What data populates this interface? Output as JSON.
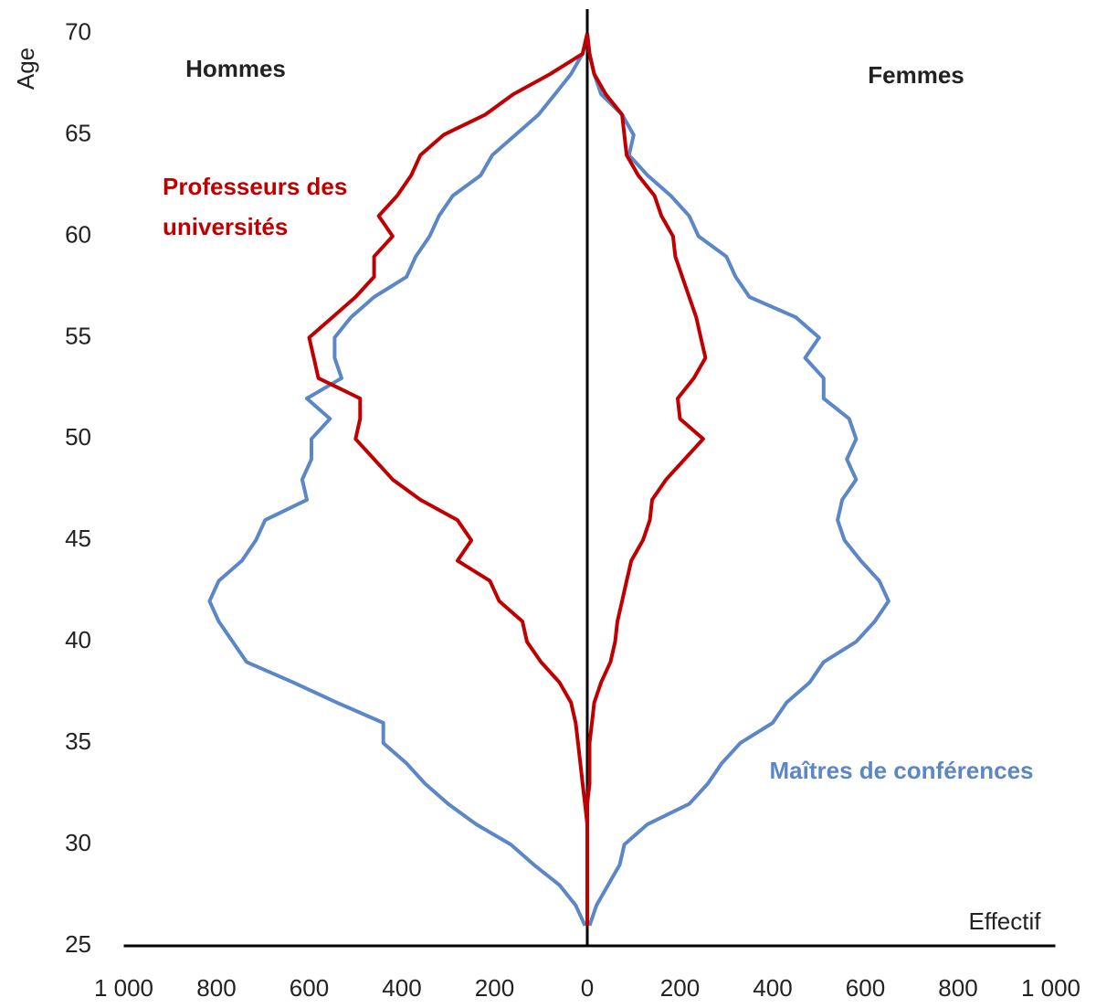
{
  "chart_data": {
    "type": "pyramid",
    "y_label": "Age",
    "x_label": "Effectif",
    "sides": [
      "Hommes",
      "Femmes"
    ],
    "ages": [
      26,
      27,
      28,
      29,
      30,
      31,
      32,
      33,
      34,
      35,
      36,
      37,
      38,
      39,
      40,
      41,
      42,
      43,
      44,
      45,
      46,
      47,
      48,
      49,
      50,
      51,
      52,
      53,
      54,
      55,
      56,
      57,
      58,
      59,
      60,
      61,
      62,
      63,
      64,
      65,
      66,
      67,
      68,
      69,
      70
    ],
    "series": [
      {
        "name": "Maîtres de conférences",
        "color": "#5b87c7",
        "men": [
          5,
          25,
          60,
          115,
          165,
          240,
          300,
          350,
          390,
          440,
          440,
          540,
          635,
          735,
          765,
          795,
          815,
          795,
          745,
          715,
          695,
          605,
          615,
          595,
          595,
          555,
          605,
          530,
          545,
          545,
          510,
          460,
          390,
          370,
          340,
          320,
          290,
          230,
          205,
          155,
          105,
          70,
          35,
          10,
          0
        ],
        "women": [
          5,
          20,
          45,
          70,
          80,
          130,
          220,
          260,
          290,
          330,
          400,
          430,
          480,
          510,
          580,
          620,
          650,
          630,
          590,
          555,
          540,
          550,
          580,
          560,
          580,
          565,
          510,
          510,
          470,
          500,
          450,
          350,
          320,
          300,
          240,
          220,
          180,
          130,
          90,
          100,
          75,
          30,
          15,
          5,
          0
        ]
      },
      {
        "name": "Professeurs des universités",
        "color": "#c00000",
        "men": [
          0,
          0,
          0,
          0,
          0,
          0,
          5,
          10,
          15,
          20,
          25,
          35,
          60,
          100,
          130,
          140,
          190,
          210,
          280,
          250,
          280,
          360,
          420,
          460,
          500,
          490,
          490,
          580,
          590,
          600,
          550,
          500,
          460,
          460,
          420,
          450,
          410,
          380,
          360,
          310,
          220,
          160,
          80,
          10,
          0
        ],
        "women": [
          0,
          0,
          0,
          0,
          0,
          0,
          0,
          5,
          5,
          5,
          10,
          15,
          30,
          50,
          60,
          65,
          75,
          85,
          95,
          120,
          135,
          140,
          170,
          210,
          250,
          200,
          195,
          230,
          255,
          245,
          235,
          220,
          205,
          190,
          185,
          160,
          145,
          110,
          85,
          80,
          75,
          40,
          15,
          5,
          0
        ]
      }
    ],
    "xlim": [
      -1000,
      1000
    ],
    "xticks": [
      {
        "value": -1000,
        "label": "1 000"
      },
      {
        "value": -800,
        "label": "800"
      },
      {
        "value": -600,
        "label": "600"
      },
      {
        "value": -400,
        "label": "400"
      },
      {
        "value": -200,
        "label": "200"
      },
      0,
      200,
      400,
      600,
      800,
      {
        "value": 1000,
        "label": "1 000"
      }
    ],
    "ylim": [
      25,
      71.2
    ],
    "yticks": [
      25,
      30,
      35,
      40,
      45,
      50,
      55,
      60,
      65,
      70
    ]
  }
}
